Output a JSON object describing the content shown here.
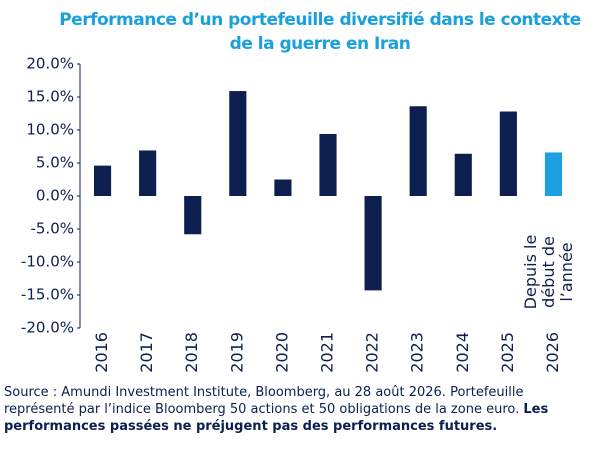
{
  "chart_data": {
    "type": "bar",
    "title": [
      "Performance d’un portefeuille diversifié dans le contexte",
      "de la guerre en Iran"
    ],
    "categories": [
      "2016",
      "2017",
      "2018",
      "2019",
      "2020",
      "2021",
      "2022",
      "2023",
      "2024",
      "2025",
      "2026"
    ],
    "values": [
      4.6,
      6.9,
      -5.8,
      15.9,
      2.5,
      9.4,
      -14.3,
      13.6,
      6.4,
      12.8,
      6.6
    ],
    "colors": [
      "#0d1f4f",
      "#0d1f4f",
      "#0d1f4f",
      "#0d1f4f",
      "#0d1f4f",
      "#0d1f4f",
      "#0d1f4f",
      "#0d1f4f",
      "#0d1f4f",
      "#0d1f4f",
      "#1ea0e0"
    ],
    "ylim": [
      -20,
      20
    ],
    "yticks": [
      {
        "value": -20,
        "label": "-20.0%"
      },
      {
        "value": -15,
        "label": "-15.0%"
      },
      {
        "value": -10,
        "label": "-10.0%"
      },
      {
        "value": -5,
        "label": "-5.0%"
      },
      {
        "value": 0,
        "label": "0.0%"
      },
      {
        "value": 5,
        "label": "5.0%"
      },
      {
        "value": 10,
        "label": "10.0%"
      },
      {
        "value": 15,
        "label": "15.0%"
      },
      {
        "value": 20,
        "label": "20.0%"
      }
    ],
    "grid": false,
    "annotation": [
      "Depuis le",
      "début de",
      "l’année"
    ],
    "source": "Source : Amundi Investment Institute, Bloomberg, au 28 août 2026. Portefeuille représenté par l’indice Bloomberg 50 actions et 50 obligations de la zone euro. ",
    "source_bold": "Les performances passées ne préjugent pas des performances futures."
  }
}
